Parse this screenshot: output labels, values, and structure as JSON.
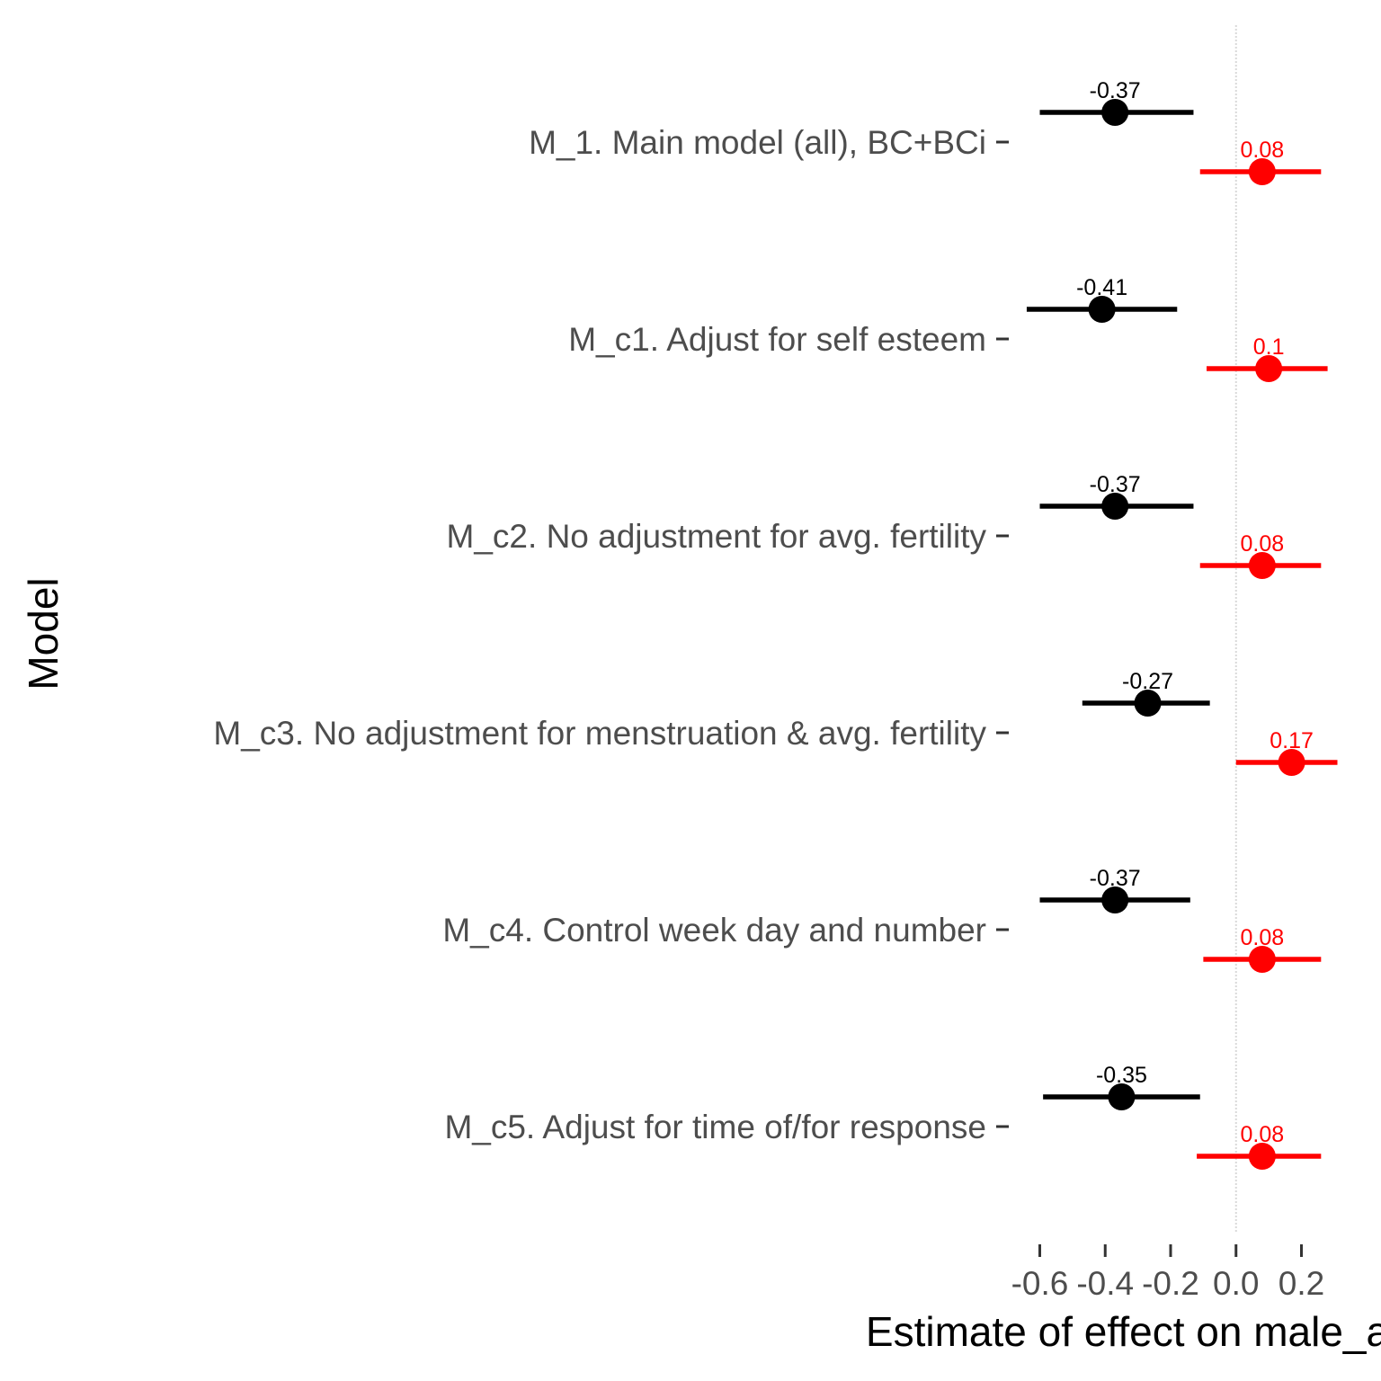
{
  "chart_data": {
    "type": "forest",
    "xlabel": "Estimate of effect on male_a",
    "ylabel": "Model",
    "xlim": [
      -0.62,
      0.32
    ],
    "x_ticks": [
      -0.6,
      -0.4,
      -0.2,
      0.0,
      0.2
    ],
    "x_tick_labels": [
      "-0.6",
      "-0.4",
      "-0.2",
      "0.0",
      "0.2"
    ],
    "reference_line": 0,
    "categories": [
      "M_1. Main model (all), BC+BCi",
      "M_c1. Adjust for self esteem",
      "M_c2. No adjustment for avg. fertility",
      "M_c3. No adjustment for menstruation & avg. fertility",
      "M_c4. Control week day and number",
      "M_c5. Adjust for time of/for response"
    ],
    "series": [
      {
        "color": "#000000",
        "estimates": [
          -0.37,
          -0.41,
          -0.37,
          -0.27,
          -0.37,
          -0.35
        ],
        "labels": [
          "-0.37",
          "-0.41",
          "-0.37",
          "-0.27",
          "-0.37",
          "-0.35"
        ],
        "lower": [
          -0.6,
          -0.64,
          -0.6,
          -0.47,
          -0.6,
          -0.59
        ],
        "upper": [
          -0.13,
          -0.18,
          -0.13,
          -0.08,
          -0.14,
          -0.11
        ]
      },
      {
        "color": "#ff0000",
        "estimates": [
          0.08,
          0.1,
          0.08,
          0.17,
          0.08,
          0.08
        ],
        "labels": [
          "0.08",
          "0.1",
          "0.08",
          "0.17",
          "0.08",
          "0.08"
        ],
        "lower": [
          -0.11,
          -0.09,
          -0.11,
          0.0,
          -0.1,
          -0.12
        ],
        "upper": [
          0.26,
          0.28,
          0.26,
          0.31,
          0.26,
          0.26
        ]
      }
    ]
  }
}
